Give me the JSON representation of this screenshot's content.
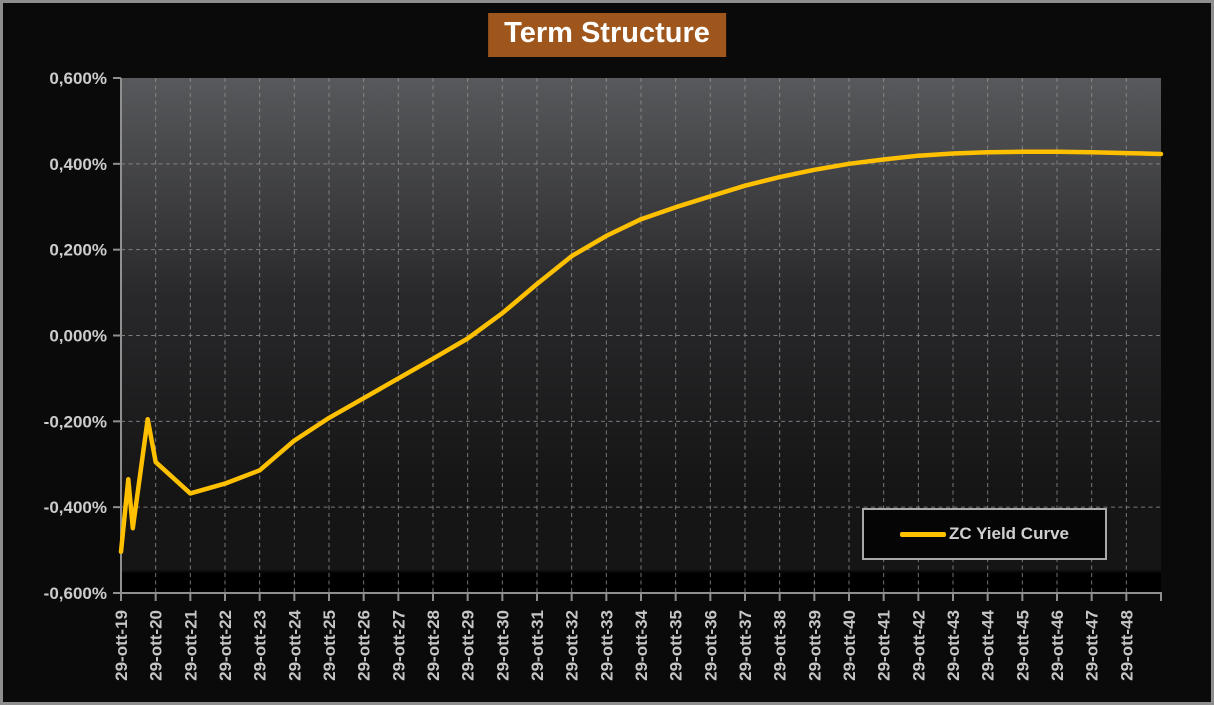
{
  "title": {
    "text": "Term Structure",
    "bg_color": "#9e561d",
    "text_color": "#ffffff"
  },
  "legend": {
    "label": "ZC Yield Curve",
    "line_color": "#FFC000"
  },
  "colors": {
    "curve": "#FFC000",
    "axis": "#8f8f8f",
    "gridline": "#919191",
    "y_tick_text": "#cccccc",
    "x_tick_text": "#c6c6c6",
    "plot_gradient_top": "#58595c",
    "plot_gradient_mid": "#29292b",
    "plot_gradient_low": "#151516",
    "plot_gradient_bottom": "#000000",
    "outer_background": "#0a0a0a"
  },
  "chart_data": {
    "type": "line",
    "title": "Term Structure",
    "xlabel": "",
    "ylabel": "",
    "ylim": [
      -0.6,
      0.6
    ],
    "x_span_years": 30,
    "grid": "dashed",
    "legend_position": "inside-bottom-right",
    "y_ticks": [
      {
        "value": 0.6,
        "label": "0,600%"
      },
      {
        "value": 0.4,
        "label": "0,400%"
      },
      {
        "value": 0.2,
        "label": "0,200%"
      },
      {
        "value": 0.0,
        "label": "0,000%"
      },
      {
        "value": -0.2,
        "label": "-0,200%"
      },
      {
        "value": -0.4,
        "label": "-0,400%"
      },
      {
        "value": -0.6,
        "label": "-0,600%"
      }
    ],
    "x_tick_labels": [
      "29-ott-19",
      "29-ott-20",
      "29-ott-21",
      "29-ott-22",
      "29-ott-23",
      "29-ott-24",
      "29-ott-25",
      "29-ott-26",
      "29-ott-27",
      "29-ott-28",
      "29-ott-29",
      "29-ott-30",
      "29-ott-31",
      "29-ott-32",
      "29-ott-33",
      "29-ott-34",
      "29-ott-35",
      "29-ott-36",
      "29-ott-37",
      "29-ott-38",
      "29-ott-39",
      "29-ott-40",
      "29-ott-41",
      "29-ott-42",
      "29-ott-43",
      "29-ott-44",
      "29-ott-45",
      "29-ott-46",
      "29-ott-47",
      "29-ott-48"
    ],
    "series": [
      {
        "name": "ZC Yield Curve",
        "color": "#FFC000",
        "unit": "percent",
        "points_t_years_vs_pct": [
          [
            0.0,
            -0.504
          ],
          [
            0.21,
            -0.335
          ],
          [
            0.34,
            -0.449
          ],
          [
            0.77,
            -0.195
          ],
          [
            1.0,
            -0.295
          ],
          [
            2.0,
            -0.368
          ],
          [
            3.0,
            -0.345
          ],
          [
            4.0,
            -0.314
          ],
          [
            5.0,
            -0.245
          ],
          [
            6.0,
            -0.192
          ],
          [
            7.0,
            -0.146
          ],
          [
            8.0,
            -0.1
          ],
          [
            9.0,
            -0.054
          ],
          [
            10.0,
            -0.007
          ],
          [
            11.0,
            0.052
          ],
          [
            12.0,
            0.12
          ],
          [
            13.0,
            0.185
          ],
          [
            14.0,
            0.232
          ],
          [
            15.0,
            0.271
          ],
          [
            16.0,
            0.299
          ],
          [
            17.0,
            0.324
          ],
          [
            18.0,
            0.349
          ],
          [
            19.0,
            0.369
          ],
          [
            20.0,
            0.386
          ],
          [
            21.0,
            0.4
          ],
          [
            22.0,
            0.41
          ],
          [
            23.0,
            0.419
          ],
          [
            24.0,
            0.424
          ],
          [
            25.0,
            0.427
          ],
          [
            26.0,
            0.428
          ],
          [
            27.0,
            0.428
          ],
          [
            28.0,
            0.427
          ],
          [
            29.0,
            0.425
          ],
          [
            30.0,
            0.423
          ]
        ]
      }
    ]
  }
}
